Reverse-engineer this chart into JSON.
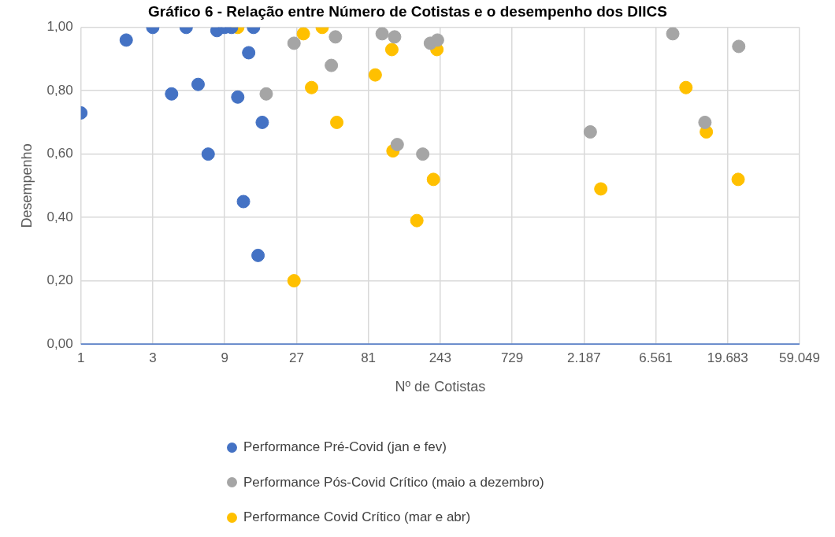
{
  "chart_data": {
    "type": "scatter",
    "title": "Gráfico 6 - Relação entre Número de Cotistas e o desempenho dos DIICS",
    "xlabel": "Nº de Cotistas",
    "ylabel": "Desempenho",
    "log": "x",
    "grid": true,
    "legend": "bottom",
    "marker": "circle",
    "xlim": [
      1,
      59049
    ],
    "xticks": [
      1,
      3,
      9,
      27,
      81,
      243,
      729,
      {
        "value": 2187,
        "label": "2.187"
      },
      {
        "value": 6561,
        "label": "6.561"
      },
      {
        "value": 19683,
        "label": "19.683"
      },
      {
        "value": 59049,
        "label": "59.049"
      }
    ],
    "ylim": [
      0,
      1
    ],
    "yticks": [
      {
        "value": 0,
        "label": "0,00"
      },
      {
        "value": 0.2,
        "label": "0,20"
      },
      {
        "value": 0.4,
        "label": "0,40"
      },
      {
        "value": 0.6,
        "label": "0,60"
      },
      {
        "value": 0.8,
        "label": "0,80"
      },
      {
        "value": 1,
        "label": "1,00"
      }
    ],
    "series": [
      {
        "name": "Performance Pré-Covid (jan e fev)",
        "color": "#4472c4",
        "x": [
          1,
          2,
          3,
          5,
          4,
          6,
          7,
          8,
          9,
          10,
          14,
          13,
          11,
          16,
          12,
          15
        ],
        "values": [
          0.73,
          0.96,
          1.0,
          1.0,
          0.79,
          0.82,
          0.6,
          0.99,
          1.0,
          1.0,
          1.0,
          0.92,
          0.78,
          0.7,
          0.45,
          0.28
        ]
      },
      {
        "name": "Performance Pós-Covid Crítico (maio a dezembro)",
        "color": "#a5a5a5",
        "x": [
          17,
          26,
          49,
          46,
          100,
          121,
          126,
          186,
          209,
          233,
          2410,
          8500,
          13900,
          23300
        ],
        "values": [
          0.79,
          0.95,
          0.97,
          0.88,
          0.98,
          0.97,
          0.63,
          0.6,
          0.95,
          0.96,
          0.67,
          0.98,
          0.7,
          0.94
        ]
      },
      {
        "name": "Performance Covid Crítico (mar e abr)",
        "color": "#ffc000",
        "x": [
          11,
          30,
          40,
          34,
          50,
          26,
          116,
          90,
          118,
          219,
          170,
          231,
          2830,
          10400,
          14200,
          23100
        ],
        "values": [
          1.0,
          0.98,
          1.0,
          0.81,
          0.7,
          0.2,
          0.93,
          0.85,
          0.61,
          0.52,
          0.39,
          0.93,
          0.49,
          0.81,
          0.67,
          0.52
        ]
      }
    ]
  }
}
